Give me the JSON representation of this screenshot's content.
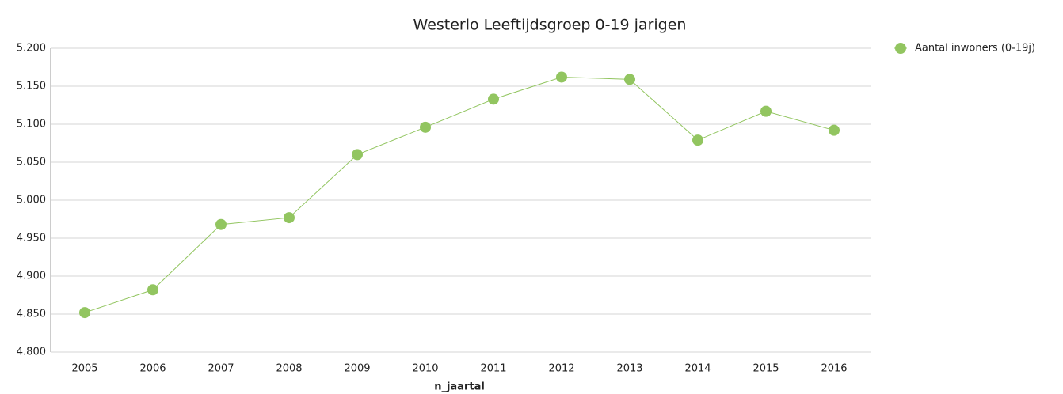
{
  "chart_data": {
    "type": "line",
    "title": "Westerlo  Leeftijdsgroep 0-19 jarigen",
    "x_label": "n_jaartal",
    "categories": [
      "2005",
      "2006",
      "2007",
      "2008",
      "2009",
      "2010",
      "2011",
      "2012",
      "2013",
      "2014",
      "2015",
      "2016"
    ],
    "series": [
      {
        "name": "Aantal inwoners (0-19j)",
        "color": "#92c560",
        "values": [
          4852,
          4882,
          4968,
          4977,
          5060,
          5096,
          5133,
          5162,
          5159,
          5079,
          5117,
          5092
        ]
      }
    ],
    "ylim": [
      4800,
      5200
    ],
    "yticks": [
      {
        "value": 4800,
        "label": "4.800"
      },
      {
        "value": 4850,
        "label": "4.850"
      },
      {
        "value": 4900,
        "label": "4.900"
      },
      {
        "value": 4950,
        "label": "4.950"
      },
      {
        "value": 5000,
        "label": "5.000"
      },
      {
        "value": 5050,
        "label": "5.050"
      },
      {
        "value": 5100,
        "label": "5.100"
      },
      {
        "value": 5150,
        "label": "5.150"
      },
      {
        "value": 5200,
        "label": "5.200"
      }
    ],
    "grid": true,
    "legend": "top-right"
  }
}
